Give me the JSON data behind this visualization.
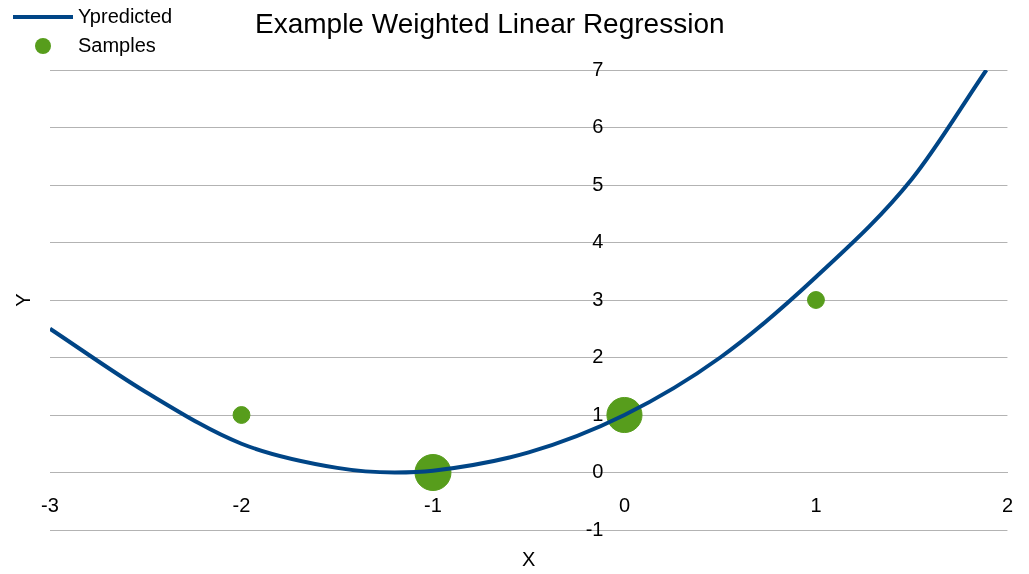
{
  "chart_data": {
    "type": "line",
    "title": "Example Weighted Linear Regression",
    "xlabel": "X",
    "ylabel": "Y",
    "xlim": [
      -3,
      2
    ],
    "ylim": [
      -1,
      7
    ],
    "xticks": [
      -3,
      -2,
      -1,
      0,
      1,
      2
    ],
    "yticks": [
      -1,
      0,
      1,
      2,
      3,
      4,
      5,
      6,
      7
    ],
    "grid": "y",
    "legend": "top left",
    "series": [
      {
        "name": "Ypredicted",
        "type": "line",
        "color": "#004586",
        "x": [
          -3,
          -2.5,
          -2,
          -1.5,
          -1.2,
          -1,
          -0.5,
          0,
          0.5,
          1,
          1.5,
          1.89
        ],
        "values": [
          2.5,
          1.4,
          0.5,
          0.08,
          0,
          0.03,
          0.35,
          1,
          2,
          3.4,
          5.1,
          7
        ]
      },
      {
        "name": "Samples",
        "type": "bubble",
        "color": "#579d1c",
        "x": [
          -2,
          -1,
          0,
          1
        ],
        "values": [
          1,
          0,
          1,
          3
        ],
        "sizes": [
          0.22,
          1,
          0.95,
          0.22
        ]
      }
    ]
  }
}
